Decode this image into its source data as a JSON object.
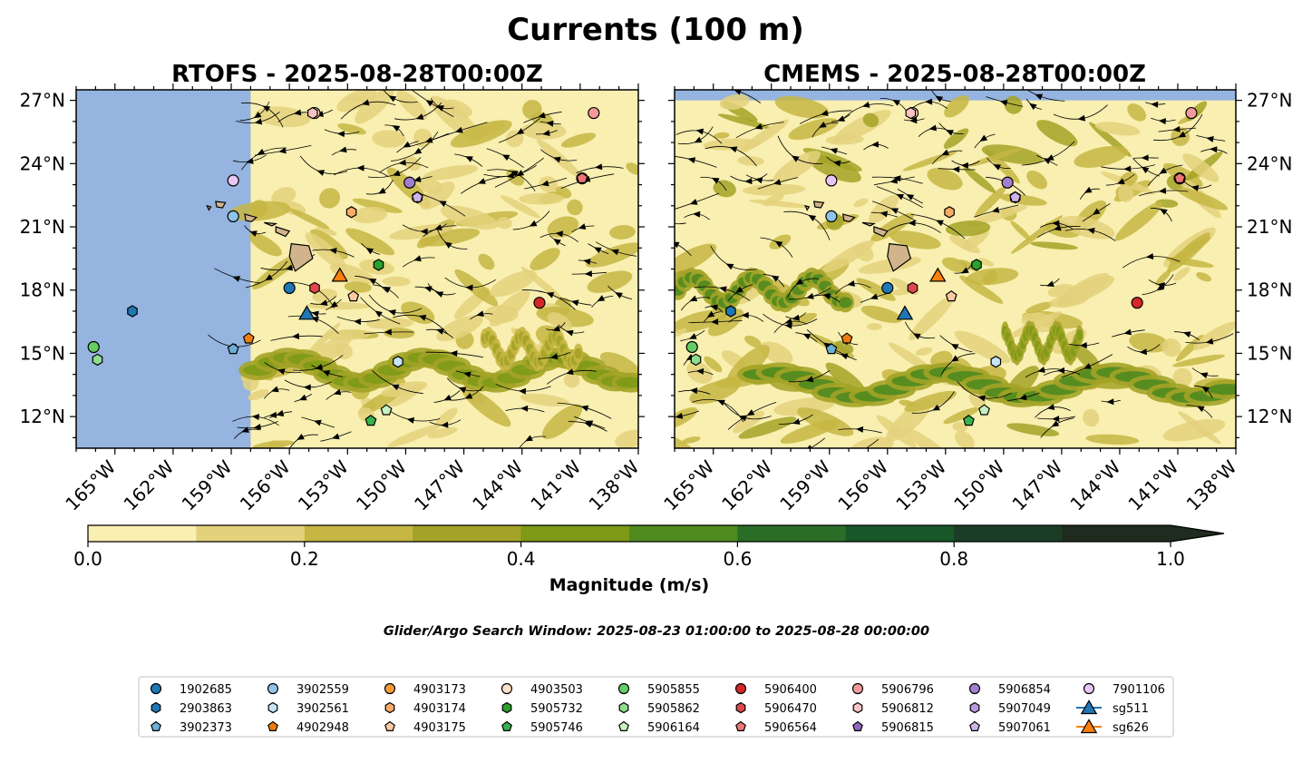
{
  "figure": {
    "suptitle": "Currents (100 m)",
    "search_window": "Glider/Argo Search Window: 2025-08-23 01:00:00 to 2025-08-28 00:00:00"
  },
  "chart_data": [
    {
      "type": "streamplot-contour-map",
      "title": "RTOFS - 2025-08-28T00:00Z",
      "lon_range": [
        -167,
        -138
      ],
      "lat_range": [
        10.5,
        27.5
      ],
      "x_ticks": [
        "165°W",
        "162°W",
        "159°W",
        "156°W",
        "153°W",
        "150°W",
        "147°W",
        "144°W",
        "141°W",
        "138°W"
      ],
      "x_tick_values": [
        -165,
        -162,
        -159,
        -156,
        -153,
        -150,
        -147,
        -144,
        -141,
        -138
      ],
      "y_ticks": [
        "12°N",
        "15°N",
        "18°N",
        "21°N",
        "24°N",
        "27°N"
      ],
      "y_tick_values": [
        12,
        15,
        18,
        21,
        24,
        27
      ],
      "ytick_side": "left",
      "model_data_lon_min": -158,
      "jets": [
        {
          "lon_start": -158,
          "lon_end": -138,
          "lat": 14.2,
          "amp": 0.45,
          "magnitude": 0.45
        },
        {
          "lon_start": -146,
          "lon_end": -141,
          "lat": 15.2,
          "amp": 0.3,
          "magnitude": 0.3
        }
      ],
      "floats": [
        {
          "id": "1902685",
          "lon": -156.0,
          "lat": 18.1
        },
        {
          "id": "2903863",
          "lon": -164.1,
          "lat": 17.0
        },
        {
          "id": "3902373",
          "lon": -158.9,
          "lat": 15.2
        },
        {
          "id": "3902559",
          "lon": -158.9,
          "lat": 21.5
        },
        {
          "id": "3902561",
          "lon": -150.4,
          "lat": 14.6
        },
        {
          "id": "4902948",
          "lon": -158.1,
          "lat": 15.7
        },
        {
          "id": "4903173",
          "lon": -140.9,
          "lat": 23.3
        },
        {
          "id": "4903174",
          "lon": -152.8,
          "lat": 21.7
        },
        {
          "id": "4903175",
          "lon": -152.7,
          "lat": 17.7
        },
        {
          "id": "4903503",
          "lon": -154.7,
          "lat": 26.4
        },
        {
          "id": "5905855",
          "lon": -166.1,
          "lat": 15.3
        },
        {
          "id": "5905732",
          "lon": -151.4,
          "lat": 19.2
        },
        {
          "id": "5905746",
          "lon": -151.8,
          "lat": 11.8
        },
        {
          "id": "5905862",
          "lon": -165.9,
          "lat": 14.7
        },
        {
          "id": "5906164",
          "lon": -151.0,
          "lat": 12.3
        },
        {
          "id": "5906400",
          "lon": -143.1,
          "lat": 17.4
        },
        {
          "id": "5906470",
          "lon": -154.7,
          "lat": 18.1
        },
        {
          "id": "5906564",
          "lon": -140.9,
          "lat": 23.3
        },
        {
          "id": "5906796",
          "lon": -140.3,
          "lat": 26.4
        },
        {
          "id": "5906812",
          "lon": -154.8,
          "lat": 26.4
        },
        {
          "id": "5906815",
          "lon": -149.8,
          "lat": 23.1
        },
        {
          "id": "5906854",
          "lon": -149.8,
          "lat": 23.1
        },
        {
          "id": "5907049",
          "lon": -149.4,
          "lat": 22.4
        },
        {
          "id": "5907061",
          "lon": -149.4,
          "lat": 22.4
        },
        {
          "id": "7901106",
          "lon": -158.9,
          "lat": 23.2
        },
        {
          "id": "sg511",
          "lon": -155.1,
          "lat": 16.9
        },
        {
          "id": "sg626",
          "lon": -153.4,
          "lat": 18.7
        }
      ]
    },
    {
      "type": "streamplot-contour-map",
      "title": "CMEMS - 2025-08-28T00:00Z",
      "lon_range": [
        -167,
        -138
      ],
      "lat_range": [
        10.5,
        27.5
      ],
      "x_ticks": [
        "165°W",
        "162°W",
        "159°W",
        "156°W",
        "153°W",
        "150°W",
        "147°W",
        "144°W",
        "141°W",
        "138°W"
      ],
      "x_tick_values": [
        -165,
        -162,
        -159,
        -156,
        -153,
        -150,
        -147,
        -144,
        -141,
        -138
      ],
      "y_ticks": [
        "12°N",
        "15°N",
        "18°N",
        "21°N",
        "24°N",
        "27°N"
      ],
      "y_tick_values": [
        12,
        15,
        18,
        21,
        24,
        27
      ],
      "ytick_side": "right",
      "model_data_lon_min": -167,
      "jets": [
        {
          "lon_start": -167,
          "lon_end": -158,
          "lat": 18.0,
          "amp": 0.55,
          "magnitude": 0.55
        },
        {
          "lon_start": -163,
          "lon_end": -138,
          "lat": 13.5,
          "amp": 0.5,
          "magnitude": 0.5
        },
        {
          "lon_start": -150,
          "lon_end": -146,
          "lat": 15.5,
          "amp": 0.45,
          "magnitude": 0.45
        }
      ],
      "floats": [
        {
          "id": "1902685",
          "lon": -156.0,
          "lat": 18.1
        },
        {
          "id": "2903863",
          "lon": -164.1,
          "lat": 17.0
        },
        {
          "id": "3902373",
          "lon": -158.9,
          "lat": 15.2
        },
        {
          "id": "3902559",
          "lon": -158.9,
          "lat": 21.5
        },
        {
          "id": "3902561",
          "lon": -150.4,
          "lat": 14.6
        },
        {
          "id": "4902948",
          "lon": -158.1,
          "lat": 15.7
        },
        {
          "id": "4903173",
          "lon": -140.9,
          "lat": 23.3
        },
        {
          "id": "4903174",
          "lon": -152.8,
          "lat": 21.7
        },
        {
          "id": "4903175",
          "lon": -152.7,
          "lat": 17.7
        },
        {
          "id": "4903503",
          "lon": -154.7,
          "lat": 26.4
        },
        {
          "id": "5905855",
          "lon": -166.1,
          "lat": 15.3
        },
        {
          "id": "5905732",
          "lon": -151.4,
          "lat": 19.2
        },
        {
          "id": "5905746",
          "lon": -151.8,
          "lat": 11.8
        },
        {
          "id": "5905862",
          "lon": -165.9,
          "lat": 14.7
        },
        {
          "id": "5906164",
          "lon": -151.0,
          "lat": 12.3
        },
        {
          "id": "5906400",
          "lon": -143.1,
          "lat": 17.4
        },
        {
          "id": "5906470",
          "lon": -154.7,
          "lat": 18.1
        },
        {
          "id": "5906564",
          "lon": -140.9,
          "lat": 23.3
        },
        {
          "id": "5906796",
          "lon": -140.3,
          "lat": 26.4
        },
        {
          "id": "5906812",
          "lon": -154.8,
          "lat": 26.4
        },
        {
          "id": "5906815",
          "lon": -149.8,
          "lat": 23.1
        },
        {
          "id": "5906854",
          "lon": -149.8,
          "lat": 23.1
        },
        {
          "id": "5907049",
          "lon": -149.4,
          "lat": 22.4
        },
        {
          "id": "5907061",
          "lon": -149.4,
          "lat": 22.4
        },
        {
          "id": "7901106",
          "lon": -158.9,
          "lat": 23.2
        },
        {
          "id": "sg511",
          "lon": -155.1,
          "lat": 16.9
        },
        {
          "id": "sg626",
          "lon": -153.4,
          "lat": 18.7
        }
      ]
    }
  ],
  "colorbar": {
    "label": "Magnitude (m/s)",
    "levels": [
      0.0,
      0.1,
      0.2,
      0.3,
      0.4,
      0.5,
      0.6,
      0.7,
      0.8,
      0.9,
      1.0
    ],
    "colors": [
      "#f8efb0",
      "#e4d17c",
      "#c6b643",
      "#a3a327",
      "#7e9a16",
      "#4f8a1f",
      "#2a6d27",
      "#175728",
      "#1b3d25",
      "#1e2b1e"
    ],
    "extend": "max",
    "ticks": [
      "0.0",
      "0.2",
      "0.4",
      "0.6",
      "0.8",
      "1.0"
    ],
    "tick_values": [
      0.0,
      0.2,
      0.4,
      0.6,
      0.8,
      1.0
    ]
  },
  "map_colors": {
    "ocean": "#95b4df",
    "land": "#d2b48c"
  },
  "legend": {
    "entries": [
      {
        "label": "1902685",
        "marker": "circle",
        "color": "#1f77b4"
      },
      {
        "label": "2903863",
        "marker": "hexagon",
        "color": "#1f77b4"
      },
      {
        "label": "3902373",
        "marker": "pentagon",
        "color": "#6baed6"
      },
      {
        "label": "3902559",
        "marker": "circle",
        "color": "#8ec3ea"
      },
      {
        "label": "3902561",
        "marker": "hexagon",
        "color": "#c6e4f7"
      },
      {
        "label": "4902948",
        "marker": "pentagon",
        "color": "#ee7d0d"
      },
      {
        "label": "4903173",
        "marker": "circle",
        "color": "#f79a3c"
      },
      {
        "label": "4903174",
        "marker": "hexagon",
        "color": "#f9aa66"
      },
      {
        "label": "4903175",
        "marker": "pentagon",
        "color": "#fdc9a0"
      },
      {
        "label": "4903503",
        "marker": "circle",
        "color": "#fde0c5"
      },
      {
        "label": "5905732",
        "marker": "hexagon",
        "color": "#2ca02c"
      },
      {
        "label": "5905746",
        "marker": "pentagon",
        "color": "#37b24d"
      },
      {
        "label": "5905855",
        "marker": "circle",
        "color": "#66cc66"
      },
      {
        "label": "5905862",
        "marker": "hexagon",
        "color": "#8edc8e"
      },
      {
        "label": "5906164",
        "marker": "pentagon",
        "color": "#c7f2c0"
      },
      {
        "label": "5906400",
        "marker": "circle",
        "color": "#d62728"
      },
      {
        "label": "5906470",
        "marker": "hexagon",
        "color": "#e0474a"
      },
      {
        "label": "5906564",
        "marker": "pentagon",
        "color": "#f07575"
      },
      {
        "label": "5906796",
        "marker": "circle",
        "color": "#f59a9a"
      },
      {
        "label": "5906812",
        "marker": "hexagon",
        "color": "#fbc2c2"
      },
      {
        "label": "5906815",
        "marker": "pentagon",
        "color": "#8f67bd"
      },
      {
        "label": "5906854",
        "marker": "circle",
        "color": "#9f7fce"
      },
      {
        "label": "5907049",
        "marker": "hexagon",
        "color": "#b99bdd"
      },
      {
        "label": "5907061",
        "marker": "pentagon",
        "color": "#cdb4ea"
      },
      {
        "label": "7901106",
        "marker": "circle",
        "color": "#e7c5f5"
      },
      {
        "label": "sg511",
        "marker": "triangle-line",
        "color": "#1f77b4"
      },
      {
        "label": "sg626",
        "marker": "triangle-line",
        "color": "#ff7f0e"
      }
    ]
  }
}
